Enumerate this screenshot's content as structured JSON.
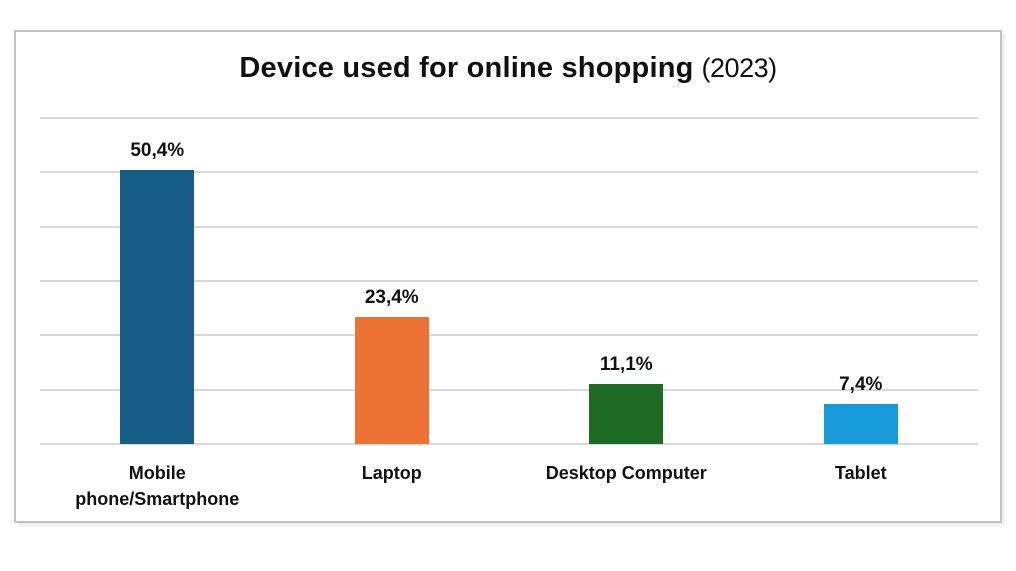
{
  "page": {
    "background": "#ffffff",
    "frame_border_color": "#c3c3c3"
  },
  "chart_data": {
    "type": "bar",
    "title": "Device used for online shopping",
    "title_suffix": "(2023)",
    "categories": [
      "Mobile phone/Smartphone",
      "Laptop",
      "Desktop Computer",
      "Tablet"
    ],
    "values": [
      50.4,
      23.4,
      11.1,
      7.4
    ],
    "value_labels": [
      "50,4%",
      "23,4%",
      "11,1%",
      "7,4%"
    ],
    "colors": [
      "#175E84",
      "#EC7233",
      "#1E6B26",
      "#189CD9"
    ],
    "xlabel": "",
    "ylabel": "",
    "ylim": [
      0,
      60
    ],
    "gridline_step": 10,
    "grid": "horizontal",
    "gridline_color": "#d8d8d8",
    "y_axis_labels_visible": false,
    "legend_position": "none",
    "decimal_separator": ","
  }
}
